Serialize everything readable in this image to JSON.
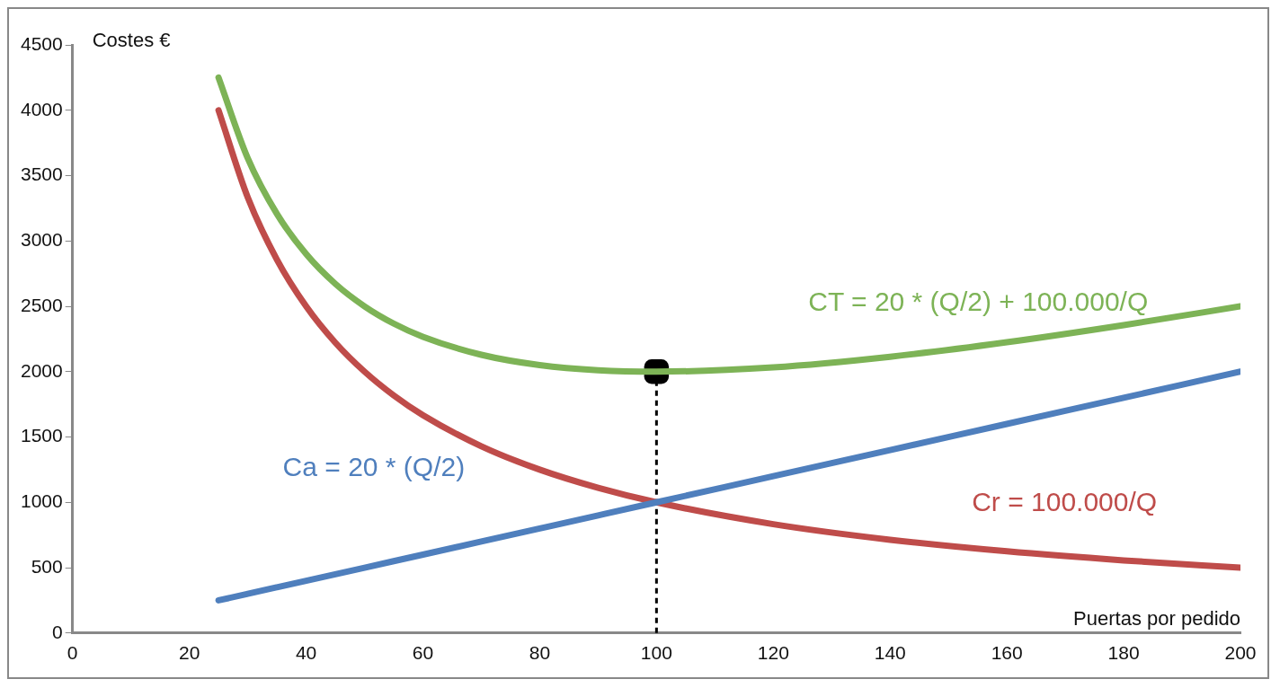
{
  "chart_data": {
    "type": "line",
    "xlabel": "Puertas por pedido",
    "ylabel": "Costes €",
    "xlim": [
      0,
      200
    ],
    "xticks": [
      0,
      20,
      40,
      60,
      80,
      100,
      120,
      140,
      160,
      180,
      200
    ],
    "ylim": [
      0,
      4500
    ],
    "yticks": [
      0,
      500,
      1000,
      1500,
      2000,
      2500,
      3000,
      3500,
      4000,
      4500
    ],
    "ref_lines": [
      {
        "axis": "x",
        "value": 100,
        "color": "#000000",
        "line_style": "dashed"
      }
    ],
    "grid": false,
    "legend": false,
    "marker": "none",
    "line_style": "solid",
    "x": [
      25,
      30,
      35,
      40,
      45,
      50,
      55,
      60,
      70,
      80,
      90,
      100,
      120,
      140,
      160,
      180,
      200
    ],
    "series": [
      {
        "name": "Ca = 20 * (Q/2)",
        "color": "#4f7fbd",
        "values": [
          250,
          300,
          350,
          400,
          450,
          500,
          550,
          600,
          700,
          800,
          900,
          1000,
          1200,
          1400,
          1600,
          1800,
          2000
        ]
      },
      {
        "name": "Cr = 100.000/Q",
        "color": "#bf4c4a",
        "values": [
          4000,
          3333,
          2857,
          2500,
          2222,
          2000,
          1818,
          1667,
          1429,
          1250,
          1111,
          1000,
          833,
          714,
          625,
          556,
          500
        ]
      },
      {
        "name": "CT = 20 * (Q/2) + 100.000/Q",
        "color": "#7db356",
        "values": [
          4250,
          3633,
          3207,
          2900,
          2672,
          2500,
          2368,
          2267,
          2129,
          2050,
          2011,
          2000,
          2033,
          2114,
          2225,
          2356,
          2500
        ]
      },
      {
        "type": "scatter",
        "x": [
          100
        ],
        "values": [
          2000
        ],
        "color": "#000000",
        "marker": "square"
      }
    ]
  }
}
